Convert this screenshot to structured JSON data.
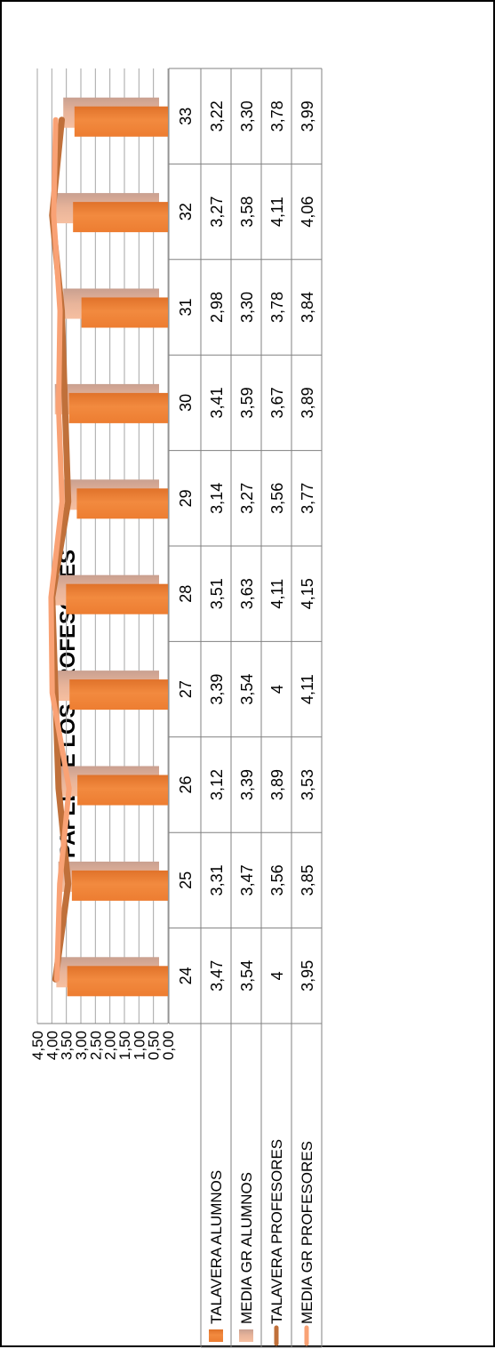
{
  "chart_data": {
    "type": "bar",
    "title": "EL PAPEL DE LOS PROFESORES",
    "categories": [
      "24",
      "25",
      "26",
      "27",
      "28",
      "29",
      "30",
      "31",
      "32",
      "33"
    ],
    "ylim": [
      0,
      4.5
    ],
    "yticks": [
      "0,00",
      "0,50",
      "1,00",
      "1,50",
      "2,00",
      "2,50",
      "3,00",
      "3,50",
      "4,00",
      "4,50"
    ],
    "grid": true,
    "legend_position": "data-table-left",
    "series": [
      {
        "name": "TALAVERA ALUMNOS",
        "kind": "bar",
        "color": "#ed7d31",
        "values": [
          3.47,
          3.31,
          3.12,
          3.39,
          3.51,
          3.14,
          3.41,
          2.98,
          3.27,
          3.22
        ],
        "labels": [
          "3,47",
          "3,31",
          "3,12",
          "3,39",
          "3,51",
          "3,14",
          "3,41",
          "2,98",
          "3,27",
          "3,22"
        ]
      },
      {
        "name": "MEDIA GR ALUMNOS",
        "kind": "bar",
        "color": "#f4b183",
        "values": [
          3.54,
          3.47,
          3.39,
          3.54,
          3.63,
          3.27,
          3.59,
          3.3,
          3.58,
          3.3
        ],
        "labels": [
          "3,54",
          "3,47",
          "3,39",
          "3,54",
          "3,63",
          "3,27",
          "3,59",
          "3,30",
          "3,58",
          "3,30"
        ]
      },
      {
        "name": "TALAVERA PROFESORES",
        "kind": "line",
        "color": "#c0703a",
        "values": [
          4,
          3.56,
          3.89,
          4,
          4.11,
          3.56,
          3.67,
          3.78,
          4.11,
          3.78
        ],
        "labels": [
          "4",
          "3,56",
          "3,89",
          "4",
          "4,11",
          "3,56",
          "3,67",
          "3,78",
          "4,11",
          "3,78"
        ]
      },
      {
        "name": "MEDIA GR PROFESORES",
        "kind": "line",
        "color": "#f9a275",
        "values": [
          3.95,
          3.85,
          3.53,
          4.11,
          4.15,
          3.77,
          3.89,
          3.84,
          4.06,
          3.99
        ],
        "labels": [
          "3,95",
          "3,85",
          "3,53",
          "4,11",
          "4,15",
          "3,77",
          "3,89",
          "3,84",
          "4,06",
          "3,99"
        ]
      }
    ]
  }
}
